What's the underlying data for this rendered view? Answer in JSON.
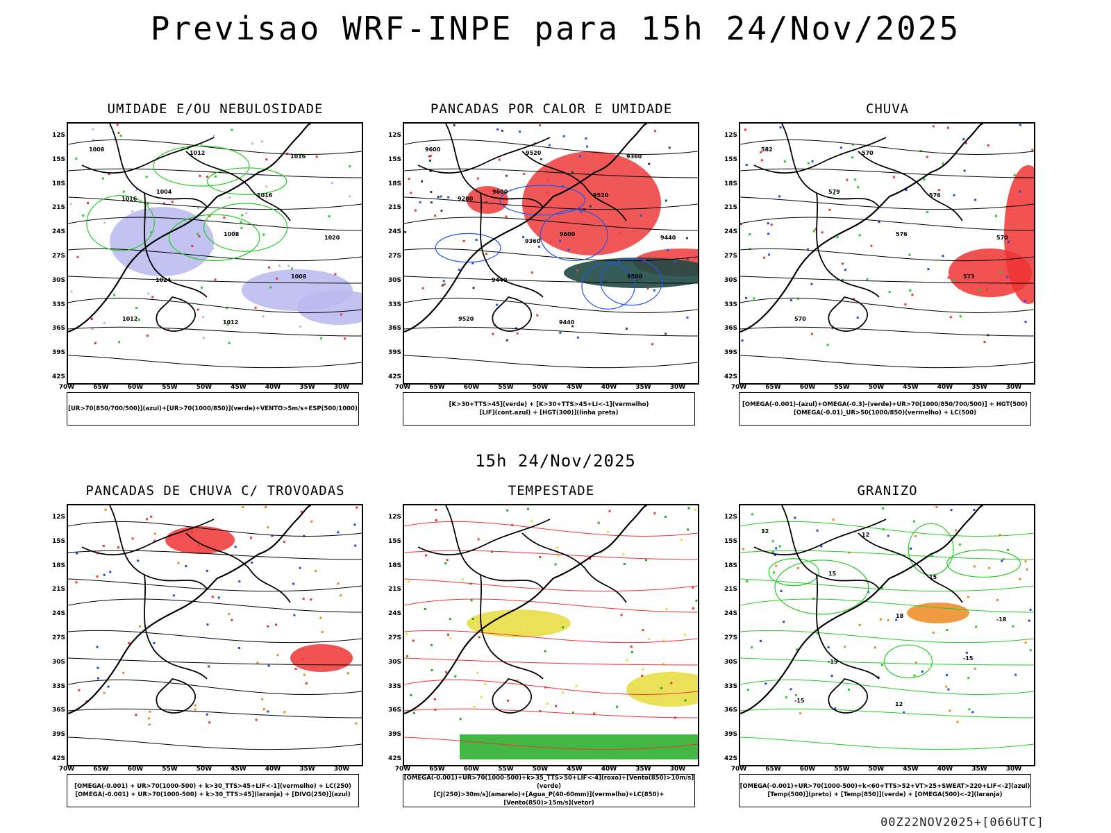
{
  "header": {
    "title": "Previsao WRF-INPE  para 15h 24/Nov/2025",
    "mid_title": "15h 24/Nov/2025",
    "footer": "00Z22NOV2025+[066UTC]"
  },
  "axes": {
    "lat_labels": [
      "12S",
      "15S",
      "18S",
      "21S",
      "24S",
      "27S",
      "30S",
      "33S",
      "36S",
      "39S",
      "42S"
    ],
    "lon_labels": [
      "70W",
      "65W",
      "60W",
      "55W",
      "50W",
      "45W",
      "40W",
      "35W",
      "30W"
    ]
  },
  "panels": [
    {
      "title": "UMIDADE E/OU NEBULOSIDADE",
      "legend_lines": [
        "[UR>70(850/700/500)](azul)+[UR>70(1000/850)](verde)+VENTO>5m/s+ESP(500/1000)"
      ],
      "contour_labels": [
        "1008",
        "1004",
        "1008",
        "1008",
        "1012",
        "1012",
        "1016",
        "1020",
        "1024",
        "1012",
        "1016",
        "1016"
      ],
      "colors": {
        "fill": "#b8b8f0",
        "line": "#22cc22",
        "accent": "#ee3333"
      }
    },
    {
      "title": "PANCADAS POR CALOR E UMIDADE",
      "legend_lines": [
        "[K>30+TTS>45](verde) + [K>30+TTS>45+LI<-1](vermelho)",
        "[LIF](cont.azul) + [HGT(300)](linha preta)"
      ],
      "contour_labels": [
        "9600",
        "9600",
        "9600",
        "9500",
        "9520",
        "9520",
        "9520",
        "9440",
        "9440",
        "9440",
        "9360",
        "9280",
        "9360"
      ],
      "colors": {
        "fill": "#ee3a3a",
        "line": "#2255ee",
        "accent": "#1f4a44"
      }
    },
    {
      "title": "CHUVA",
      "legend_lines": [
        "[OMEGA(-0.001)-(azul)+OMEGA(-0.3)-(verde)+UR>70(1000/850/700/500)] + HGT(500)",
        "[OMEGA(-0.01)_UR>50(1000/850)(vermelho) + LC(500)"
      ],
      "contour_labels": [
        "582",
        "579",
        "576",
        "573",
        "570",
        "570",
        "576",
        "570"
      ],
      "colors": {
        "fill": "#ee3333",
        "line": "#2244ee",
        "accent": "#22cc22"
      }
    },
    {
      "title": "PANCADAS DE CHUVA C/ TROVOADAS",
      "legend_lines": [
        "[OMEGA(-0.001) + UR>70(1000-500) + k>30_TTS>45+LIF<-1](vermelho) + LC(250)",
        "[OMEGA(-0.001) + UR>70(1000-500) + k>30_TTS>45](laranja) + [DIVG(250)](azul)"
      ],
      "contour_labels": [],
      "colors": {
        "fill": "#ee3333",
        "line": "#2244ee",
        "accent": "#ee8822"
      }
    },
    {
      "title": "TEMPESTADE",
      "legend_lines": [
        "[OMEGA(-0.001)+UR>70(1000-500)+k>35_TTS>50+LIF<-4](roxo)+[Vento(850)>10m/s](verde)",
        "[CJ(250)>30m/s](amarelo)+[Agua_P(40-60mm)](vermelho)+LC(850)+[Vento(850)>15m/s](vetor)"
      ],
      "contour_labels": [],
      "colors": {
        "fill": "#e6dc3c",
        "line": "#ee3333",
        "accent": "#22aa22"
      }
    },
    {
      "title": "GRANIZO",
      "legend_lines": [
        "[OMEGA(-0.001)+UR>70(1000-500)+k<60+TTS>52+VT>25+SWEAT>220+LIF<-2](azul)",
        "[Temp(500)](preto) + [Temp(850)](verde) + [OMEGA(500)<-2](laranja)"
      ],
      "contour_labels": [
        "12",
        "15",
        "18",
        "-15",
        "-15",
        "12",
        "15",
        "-18",
        "-15",
        "12"
      ],
      "colors": {
        "fill": "#ee8822",
        "line": "#22cc22",
        "accent": "#2244ee"
      }
    }
  ]
}
